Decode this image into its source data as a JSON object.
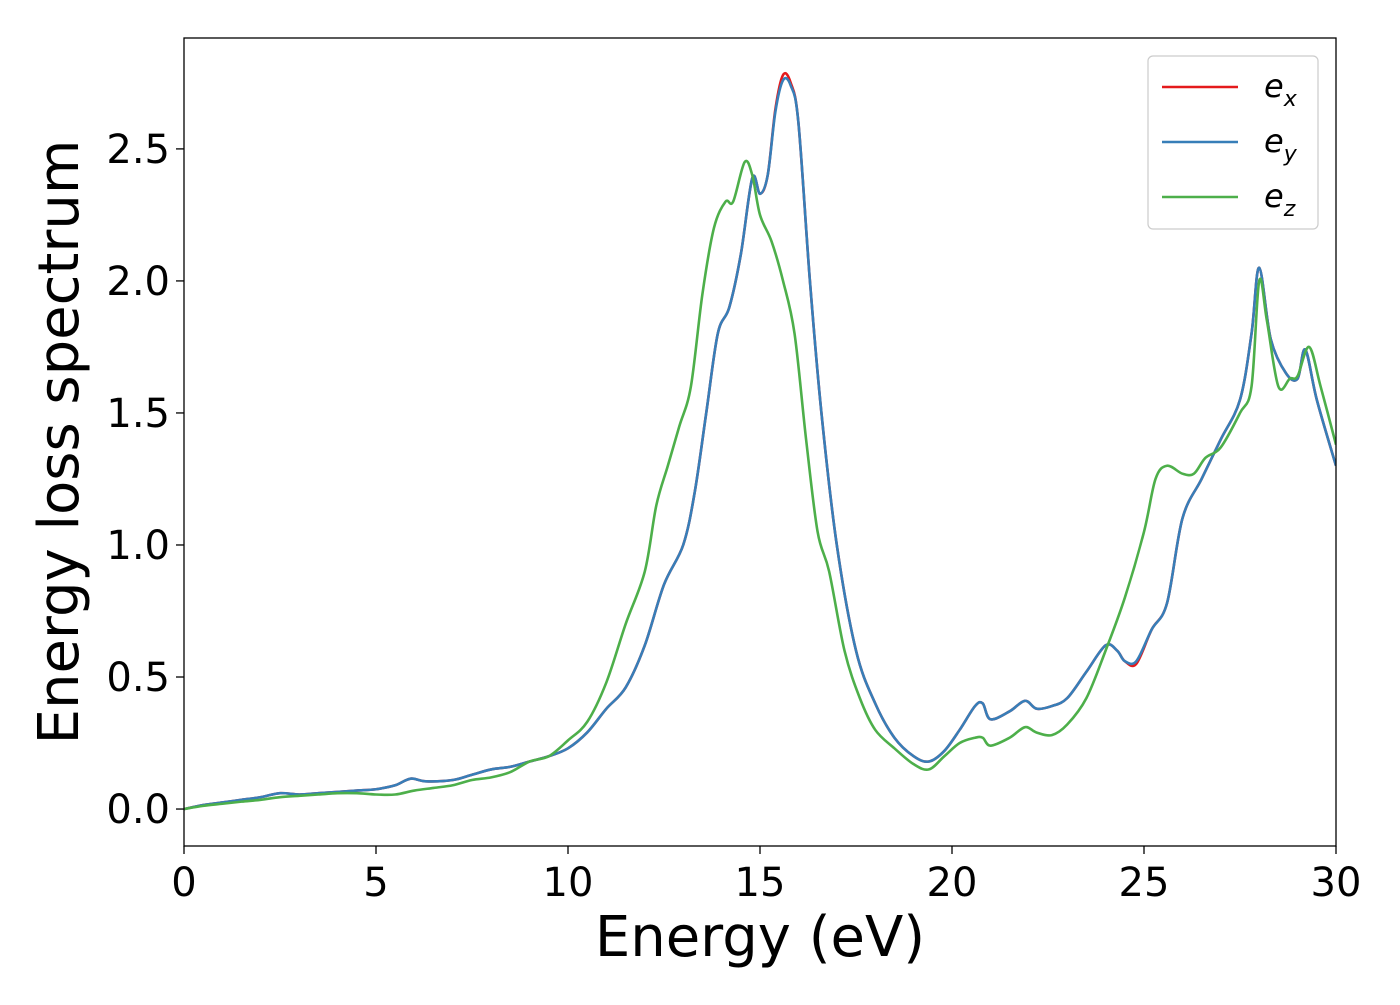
{
  "chart_data": {
    "type": "line",
    "title": "",
    "xlabel": "Energy (eV)",
    "ylabel": "Energy loss spectrum",
    "xlim": [
      0,
      30
    ],
    "ylim": [
      -0.14,
      2.92
    ],
    "xticks": [
      0,
      5,
      10,
      15,
      20,
      25,
      30
    ],
    "xtick_labels": [
      "0",
      "5",
      "10",
      "15",
      "20",
      "25",
      "30"
    ],
    "yticks": [
      0.0,
      0.5,
      1.0,
      1.5,
      2.0,
      2.5
    ],
    "ytick_labels": [
      "0.0",
      "0.5",
      "1.0",
      "1.5",
      "2.0",
      "2.5"
    ],
    "grid": false,
    "legend_position": "top-right",
    "series": [
      {
        "name": "e",
        "subscript": "x",
        "color": "#e41a1c",
        "x": [
          0,
          0.5,
          1,
          1.5,
          2,
          2.5,
          3,
          3.5,
          4,
          4.5,
          5,
          5.5,
          5.9,
          6.3,
          7,
          7.5,
          8,
          8.5,
          9,
          9.5,
          10,
          10.5,
          11,
          11.5,
          12,
          12.5,
          13,
          13.3,
          13.6,
          13.9,
          14.2,
          14.5,
          14.8,
          15.0,
          15.2,
          15.4,
          15.6,
          15.8,
          16.0,
          16.3,
          16.6,
          17.0,
          17.5,
          18.0,
          18.5,
          19.0,
          19.4,
          19.8,
          20.2,
          20.6,
          20.8,
          21.0,
          21.5,
          21.9,
          22.2,
          22.6,
          23.0,
          23.5,
          24.0,
          24.3,
          24.5,
          24.8,
          25.2,
          25.6,
          26.0,
          26.5,
          27.0,
          27.5,
          27.8,
          28.0,
          28.3,
          28.7,
          29.0,
          29.2,
          29.5,
          30.0
        ],
        "values": [
          0.0,
          0.015,
          0.025,
          0.035,
          0.045,
          0.06,
          0.055,
          0.06,
          0.065,
          0.07,
          0.075,
          0.09,
          0.115,
          0.105,
          0.11,
          0.13,
          0.15,
          0.16,
          0.18,
          0.2,
          0.23,
          0.29,
          0.38,
          0.46,
          0.62,
          0.85,
          1.0,
          1.2,
          1.5,
          1.8,
          1.9,
          2.1,
          2.39,
          2.33,
          2.4,
          2.65,
          2.78,
          2.75,
          2.6,
          2.0,
          1.5,
          1.0,
          0.6,
          0.4,
          0.27,
          0.2,
          0.18,
          0.22,
          0.3,
          0.39,
          0.4,
          0.34,
          0.37,
          0.41,
          0.38,
          0.39,
          0.42,
          0.52,
          0.62,
          0.6,
          0.56,
          0.55,
          0.68,
          0.78,
          1.1,
          1.25,
          1.4,
          1.55,
          1.8,
          2.05,
          1.78,
          1.65,
          1.63,
          1.74,
          1.55,
          1.3
        ]
      },
      {
        "name": "e",
        "subscript": "y",
        "color": "#377eb8",
        "x": [
          0,
          0.5,
          1,
          1.5,
          2,
          2.5,
          3,
          3.5,
          4,
          4.5,
          5,
          5.5,
          5.9,
          6.3,
          7,
          7.5,
          8,
          8.5,
          9,
          9.5,
          10,
          10.5,
          11,
          11.5,
          12,
          12.5,
          13,
          13.3,
          13.6,
          13.9,
          14.2,
          14.5,
          14.8,
          15.0,
          15.2,
          15.4,
          15.6,
          15.8,
          16.0,
          16.3,
          16.6,
          17.0,
          17.5,
          18.0,
          18.5,
          19.0,
          19.4,
          19.8,
          20.2,
          20.6,
          20.8,
          21.0,
          21.5,
          21.9,
          22.2,
          22.6,
          23.0,
          23.5,
          24.0,
          24.3,
          24.5,
          24.8,
          25.2,
          25.6,
          26.0,
          26.5,
          27.0,
          27.5,
          27.8,
          28.0,
          28.3,
          28.7,
          29.0,
          29.2,
          29.5,
          30.0
        ],
        "values": [
          0.0,
          0.015,
          0.025,
          0.035,
          0.045,
          0.06,
          0.055,
          0.06,
          0.065,
          0.07,
          0.075,
          0.09,
          0.115,
          0.105,
          0.11,
          0.13,
          0.15,
          0.16,
          0.18,
          0.2,
          0.23,
          0.29,
          0.38,
          0.46,
          0.62,
          0.85,
          1.0,
          1.2,
          1.5,
          1.8,
          1.9,
          2.1,
          2.39,
          2.33,
          2.4,
          2.64,
          2.76,
          2.74,
          2.6,
          2.0,
          1.5,
          1.0,
          0.6,
          0.4,
          0.27,
          0.2,
          0.18,
          0.22,
          0.3,
          0.39,
          0.4,
          0.34,
          0.37,
          0.41,
          0.38,
          0.39,
          0.42,
          0.52,
          0.62,
          0.6,
          0.56,
          0.56,
          0.68,
          0.78,
          1.1,
          1.25,
          1.4,
          1.55,
          1.8,
          2.05,
          1.78,
          1.65,
          1.63,
          1.74,
          1.55,
          1.3
        ]
      },
      {
        "name": "e",
        "subscript": "z",
        "color": "#4daf4a",
        "x": [
          0,
          0.5,
          1,
          1.5,
          2,
          2.5,
          3,
          3.5,
          4,
          4.5,
          5,
          5.5,
          6,
          6.5,
          7,
          7.5,
          8,
          8.5,
          9,
          9.5,
          10,
          10.5,
          11,
          11.5,
          12,
          12.3,
          12.6,
          12.9,
          13.2,
          13.5,
          13.8,
          14.1,
          14.3,
          14.6,
          14.8,
          15.0,
          15.3,
          15.6,
          15.9,
          16.2,
          16.5,
          16.8,
          17.2,
          17.6,
          18.0,
          18.5,
          19.0,
          19.4,
          19.8,
          20.2,
          20.6,
          20.8,
          21.0,
          21.5,
          21.9,
          22.2,
          22.6,
          23.0,
          23.5,
          24.0,
          24.5,
          25.0,
          25.3,
          25.6,
          26.0,
          26.3,
          26.6,
          27.0,
          27.5,
          27.8,
          28.0,
          28.2,
          28.5,
          28.8,
          29.0,
          29.3,
          29.6,
          30.0
        ],
        "values": [
          0.0,
          0.012,
          0.02,
          0.028,
          0.035,
          0.045,
          0.05,
          0.055,
          0.06,
          0.06,
          0.055,
          0.055,
          0.07,
          0.08,
          0.09,
          0.11,
          0.12,
          0.14,
          0.18,
          0.2,
          0.26,
          0.33,
          0.48,
          0.7,
          0.9,
          1.15,
          1.3,
          1.45,
          1.6,
          1.95,
          2.2,
          2.3,
          2.3,
          2.45,
          2.4,
          2.25,
          2.15,
          2.0,
          1.8,
          1.4,
          1.05,
          0.9,
          0.6,
          0.42,
          0.3,
          0.23,
          0.17,
          0.15,
          0.2,
          0.25,
          0.27,
          0.27,
          0.24,
          0.27,
          0.31,
          0.29,
          0.28,
          0.32,
          0.42,
          0.6,
          0.8,
          1.05,
          1.25,
          1.3,
          1.27,
          1.27,
          1.33,
          1.37,
          1.5,
          1.6,
          2.0,
          1.85,
          1.6,
          1.63,
          1.64,
          1.75,
          1.6,
          1.38
        ]
      }
    ]
  }
}
